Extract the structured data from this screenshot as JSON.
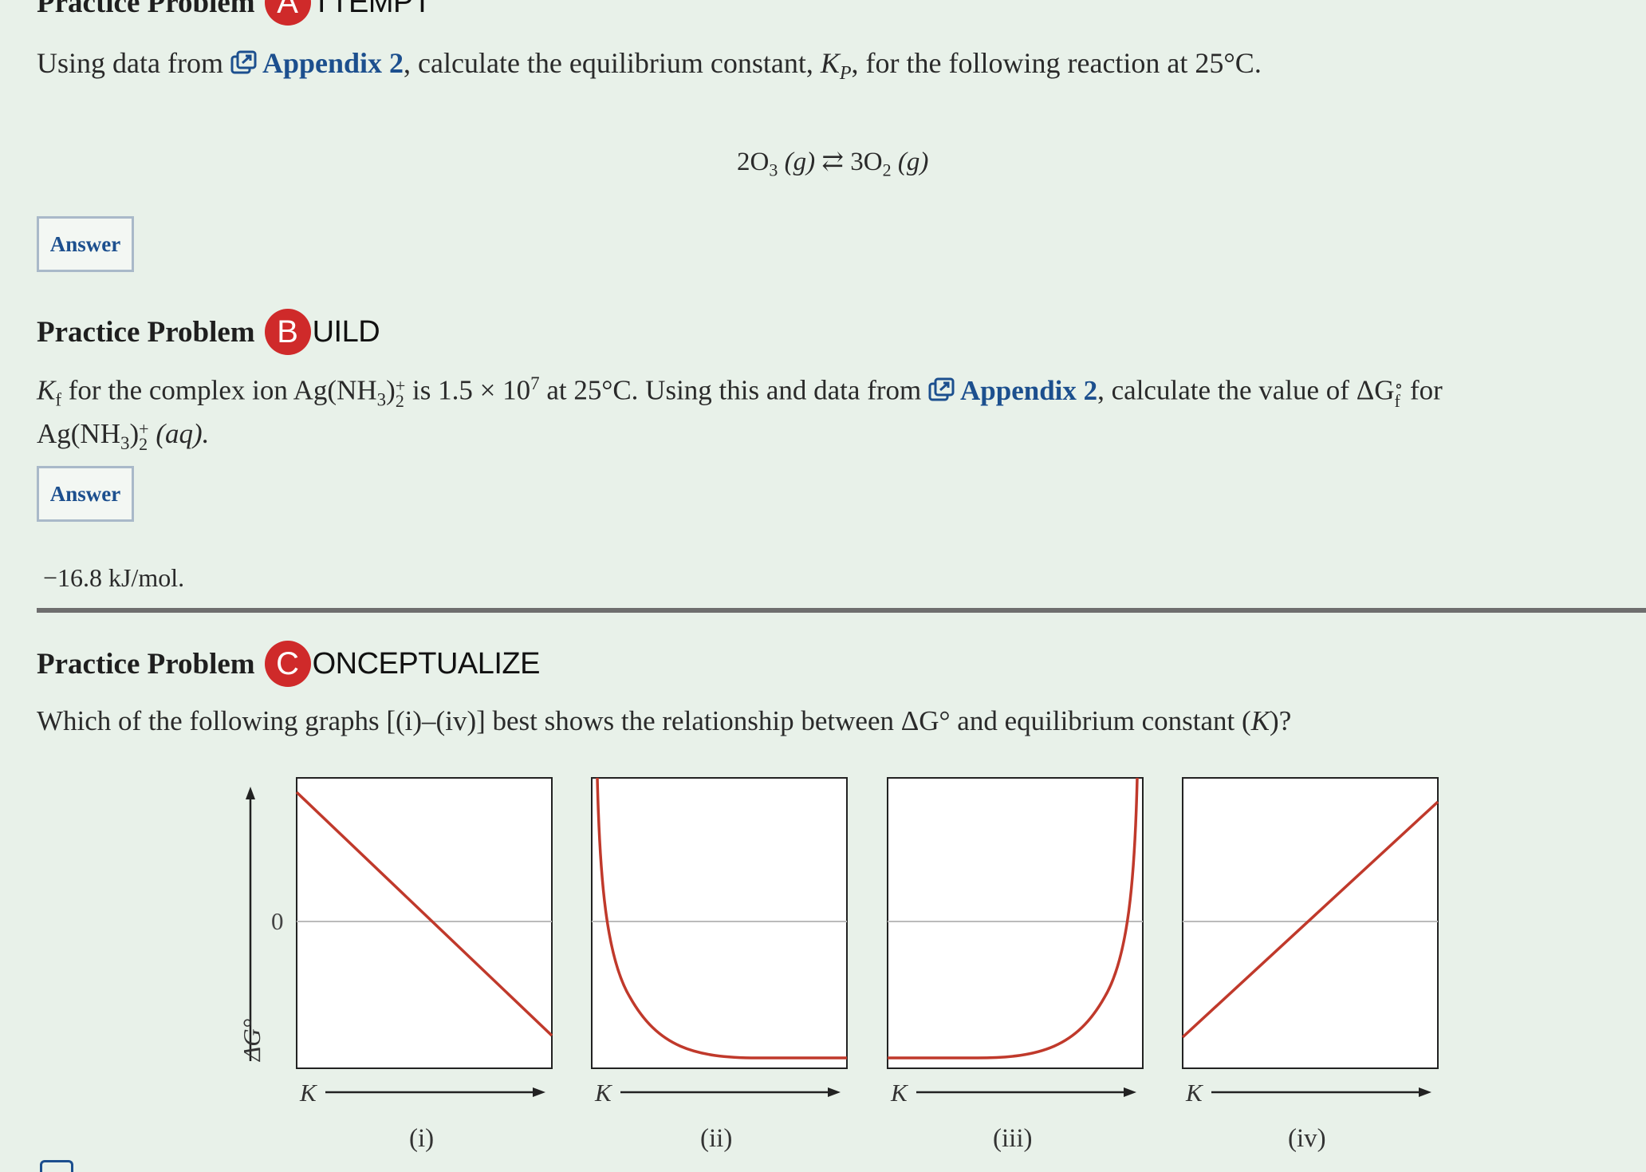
{
  "problem_a": {
    "heading": "Practice Problem",
    "badge_letter": "A",
    "badge_rest": "TTEMPT",
    "text_before": "Using data from ",
    "link": "Appendix 2",
    "text_after_1": ", calculate the equilibrium constant, ",
    "kp_symbol": "K",
    "kp_sub": "P",
    "text_after_2": ", for the following reaction at 25°C.",
    "equation": {
      "reactant_coef": "2O",
      "reactant_sub": "3",
      "reactant_state": "(g)",
      "arrow": "⇄",
      "product_coef": "3O",
      "product_sub": "2",
      "product_state": "(g)"
    },
    "answer_button": "Answer"
  },
  "problem_b": {
    "heading": "Practice Problem",
    "badge_letter": "B",
    "badge_rest": "UILD",
    "kf": "K",
    "kf_sub": "f",
    "text_1": " for the complex ion Ag(NH",
    "nh3_sub": "3",
    "text_2": ")",
    "charge_sup": "+",
    "charge_sub": "2",
    "text_3": " is 1.5 × 10",
    "exp": "7",
    "text_4": " at 25°C. Using this and data from ",
    "link": "Appendix 2",
    "text_5": ", calculate the value of ΔG",
    "g_sup": "∘",
    "g_sub": "f",
    "text_6": " for",
    "line2_a": "Ag(NH",
    "line2_sub": "3",
    "line2_b": ")",
    "line2_sup": "+",
    "line2_sub2": "2",
    "line2_state": " (aq).",
    "answer_button": "Answer",
    "answer_value": "−16.8 kJ/mol."
  },
  "problem_c": {
    "heading": "Practice Problem",
    "badge_letter": "C",
    "badge_rest": "ONCEPTUALIZE",
    "question_1": "Which of the following graphs [(i)–(iv)] best shows the relationship between ΔG",
    "question_deg": "°",
    "question_2": " and equilibrium constant (",
    "question_k": "K",
    "question_3": ")?",
    "y_axis_label": "ΔG°",
    "zero_label": "0",
    "x_axis_label": "K",
    "graph_labels": [
      "(i)",
      "(ii)",
      "(iii)",
      "(iv)"
    ]
  },
  "colors": {
    "background": "#e8f1e9",
    "badge": "#cf2a2a",
    "link": "#1c4f8e",
    "curve": "#c0392b"
  }
}
